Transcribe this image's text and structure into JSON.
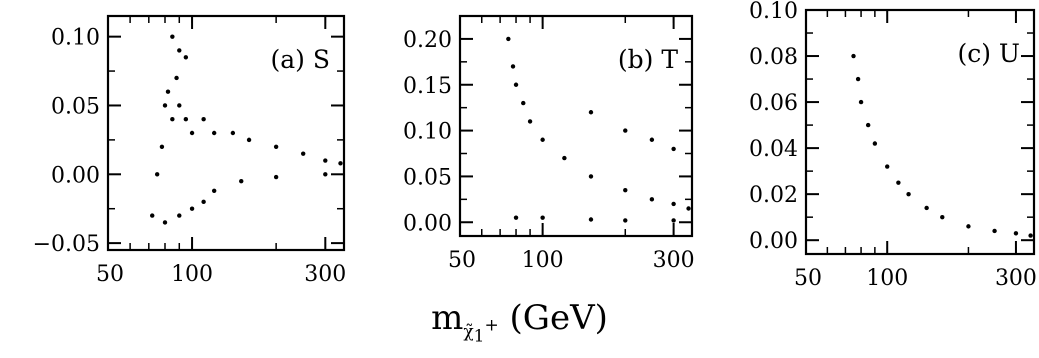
{
  "figure": {
    "x_axis_label": {
      "base": "m",
      "subscript": "χ̃",
      "subsubscript": "1",
      "superscript": "+",
      "unit": "(GeV)"
    }
  },
  "chart_data": [
    {
      "type": "scatter",
      "panel_label": "(a) S",
      "x_scale": "log",
      "xlim": [
        50,
        350
      ],
      "ylim": [
        -0.055,
        0.115
      ],
      "x_ticks": [
        50,
        100,
        300
      ],
      "x_tick_labels": [
        "50",
        "100",
        "300"
      ],
      "y_ticks": [
        -0.05,
        0.0,
        0.05,
        0.1
      ],
      "y_tick_labels": [
        "−0.05",
        "0.00",
        "0.05",
        "0.10"
      ],
      "series": [
        {
          "points": [
            [
              72,
              -0.03
            ],
            [
              75,
              0.0
            ],
            [
              78,
              0.02
            ],
            [
              80,
              0.05
            ],
            [
              82,
              0.06
            ],
            [
              85,
              0.04
            ],
            [
              88,
              0.07
            ],
            [
              90,
              0.05
            ],
            [
              95,
              0.04
            ],
            [
              100,
              0.03
            ],
            [
              110,
              0.04
            ],
            [
              120,
              0.03
            ],
            [
              140,
              0.03
            ],
            [
              160,
              0.025
            ],
            [
              200,
              0.02
            ],
            [
              250,
              0.015
            ],
            [
              300,
              0.01
            ],
            [
              340,
              0.008
            ],
            [
              80,
              -0.035
            ],
            [
              90,
              -0.03
            ],
            [
              100,
              -0.025
            ],
            [
              110,
              -0.02
            ],
            [
              120,
              -0.012
            ],
            [
              150,
              -0.005
            ],
            [
              200,
              -0.002
            ],
            [
              300,
              0.0
            ],
            [
              85,
              0.1
            ],
            [
              90,
              0.09
            ],
            [
              95,
              0.085
            ]
          ]
        }
      ]
    },
    {
      "type": "scatter",
      "panel_label": "(b) T",
      "x_scale": "log",
      "xlim": [
        50,
        350
      ],
      "ylim": [
        -0.015,
        0.225
      ],
      "x_ticks": [
        50,
        100,
        300
      ],
      "x_tick_labels": [
        "50",
        "100",
        "300"
      ],
      "y_ticks": [
        0.0,
        0.05,
        0.1,
        0.15,
        0.2
      ],
      "y_tick_labels": [
        "0.00",
        "0.05",
        "0.10",
        "0.15",
        "0.20"
      ],
      "series": [
        {
          "points": [
            [
              75,
              0.2
            ],
            [
              78,
              0.17
            ],
            [
              80,
              0.15
            ],
            [
              85,
              0.13
            ],
            [
              90,
              0.11
            ],
            [
              100,
              0.09
            ],
            [
              120,
              0.07
            ],
            [
              150,
              0.05
            ],
            [
              200,
              0.035
            ],
            [
              250,
              0.025
            ],
            [
              300,
              0.02
            ],
            [
              340,
              0.015
            ],
            [
              80,
              0.005
            ],
            [
              100,
              0.005
            ],
            [
              150,
              0.003
            ],
            [
              200,
              0.002
            ],
            [
              300,
              0.002
            ],
            [
              150,
              0.12
            ],
            [
              200,
              0.1
            ],
            [
              250,
              0.09
            ],
            [
              300,
              0.08
            ]
          ]
        }
      ]
    },
    {
      "type": "scatter",
      "panel_label": "(c) U",
      "x_scale": "log",
      "xlim": [
        50,
        350
      ],
      "ylim": [
        -0.006,
        0.1
      ],
      "x_ticks": [
        50,
        100,
        300
      ],
      "x_tick_labels": [
        "50",
        "100",
        "300"
      ],
      "y_ticks": [
        0.0,
        0.02,
        0.04,
        0.06,
        0.08,
        0.1
      ],
      "y_tick_labels": [
        "0.00",
        "0.02",
        "0.04",
        "0.06",
        "0.08",
        "0.10"
      ],
      "series": [
        {
          "points": [
            [
              75,
              0.08
            ],
            [
              78,
              0.07
            ],
            [
              80,
              0.06
            ],
            [
              85,
              0.05
            ],
            [
              90,
              0.042
            ],
            [
              100,
              0.032
            ],
            [
              110,
              0.025
            ],
            [
              120,
              0.02
            ],
            [
              140,
              0.014
            ],
            [
              160,
              0.01
            ],
            [
              200,
              0.006
            ],
            [
              250,
              0.004
            ],
            [
              300,
              0.003
            ],
            [
              340,
              0.002
            ]
          ]
        }
      ]
    }
  ]
}
